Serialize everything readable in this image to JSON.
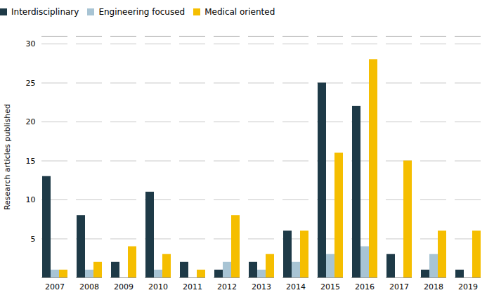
{
  "chart_data": {
    "type": "bar",
    "categories": [
      "2007",
      "2008",
      "2009",
      "2010",
      "2011",
      "2012",
      "2013",
      "2014",
      "2015",
      "2016",
      "2017",
      "2018",
      "2019"
    ],
    "series": [
      {
        "name": "Interdisciplinary",
        "color": "#1e3a47",
        "values": [
          13,
          8,
          2,
          11,
          2,
          1,
          2,
          6,
          25,
          22,
          3,
          1,
          1
        ]
      },
      {
        "name": "Engineering focused",
        "color": "#a8c4d4",
        "values": [
          1,
          1,
          0,
          1,
          0,
          2,
          1,
          2,
          3,
          4,
          0,
          3,
          0
        ]
      },
      {
        "name": "Medical oriented",
        "color": "#f5be00",
        "values": [
          1,
          2,
          4,
          3,
          1,
          8,
          3,
          6,
          16,
          28,
          15,
          6,
          6
        ]
      }
    ],
    "y_label": "Research articles published",
    "ylim": [
      0,
      31
    ],
    "yticks": [
      {
        "value": 0,
        "label": ""
      },
      5,
      10,
      15,
      20,
      25,
      30
    ],
    "grid": true,
    "legend": "top"
  }
}
